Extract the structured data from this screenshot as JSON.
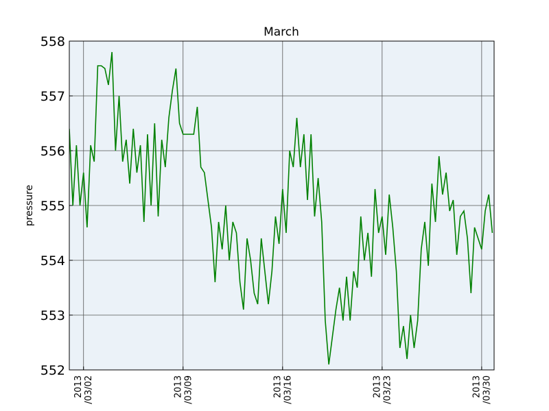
{
  "chart_data": {
    "type": "line",
    "title": "March",
    "ylabel": "pressure",
    "color": "#008000",
    "background": "#ebf2f8",
    "grid": true,
    "x": [
      "2013-03-01T00:00Z",
      "2013-03-01T06:00Z",
      "2013-03-01T12:00Z",
      "2013-03-01T18:00Z",
      "2013-03-02T00:00Z",
      "2013-03-02T06:00Z",
      "2013-03-02T12:00Z",
      "2013-03-02T18:00Z",
      "2013-03-03T00:00Z",
      "2013-03-03T06:00Z",
      "2013-03-03T12:00Z",
      "2013-03-03T18:00Z",
      "2013-03-04T00:00Z",
      "2013-03-04T06:00Z",
      "2013-03-04T12:00Z",
      "2013-03-04T18:00Z",
      "2013-03-05T00:00Z",
      "2013-03-05T06:00Z",
      "2013-03-05T12:00Z",
      "2013-03-05T18:00Z",
      "2013-03-06T00:00Z",
      "2013-03-06T06:00Z",
      "2013-03-06T12:00Z",
      "2013-03-06T18:00Z",
      "2013-03-07T00:00Z",
      "2013-03-07T06:00Z",
      "2013-03-07T12:00Z",
      "2013-03-07T18:00Z",
      "2013-03-08T00:00Z",
      "2013-03-08T06:00Z",
      "2013-03-08T12:00Z",
      "2013-03-08T18:00Z",
      "2013-03-09T00:00Z",
      "2013-03-09T06:00Z",
      "2013-03-09T12:00Z",
      "2013-03-09T18:00Z",
      "2013-03-10T00:00Z",
      "2013-03-10T06:00Z",
      "2013-03-10T12:00Z",
      "2013-03-10T18:00Z",
      "2013-03-11T00:00Z",
      "2013-03-11T06:00Z",
      "2013-03-11T12:00Z",
      "2013-03-11T18:00Z",
      "2013-03-12T00:00Z",
      "2013-03-12T06:00Z",
      "2013-03-12T12:00Z",
      "2013-03-12T18:00Z",
      "2013-03-13T00:00Z",
      "2013-03-13T06:00Z",
      "2013-03-13T12:00Z",
      "2013-03-13T18:00Z",
      "2013-03-14T00:00Z",
      "2013-03-14T06:00Z",
      "2013-03-14T12:00Z",
      "2013-03-14T18:00Z",
      "2013-03-15T00:00Z",
      "2013-03-15T06:00Z",
      "2013-03-15T12:00Z",
      "2013-03-15T18:00Z",
      "2013-03-16T00:00Z",
      "2013-03-16T06:00Z",
      "2013-03-16T12:00Z",
      "2013-03-16T18:00Z",
      "2013-03-17T00:00Z",
      "2013-03-17T06:00Z",
      "2013-03-17T12:00Z",
      "2013-03-17T18:00Z",
      "2013-03-18T00:00Z",
      "2013-03-18T06:00Z",
      "2013-03-18T12:00Z",
      "2013-03-18T18:00Z",
      "2013-03-19T00:00Z",
      "2013-03-19T06:00Z",
      "2013-03-19T12:00Z",
      "2013-03-19T18:00Z",
      "2013-03-20T00:00Z",
      "2013-03-20T06:00Z",
      "2013-03-20T12:00Z",
      "2013-03-20T18:00Z",
      "2013-03-21T00:00Z",
      "2013-03-21T06:00Z",
      "2013-03-21T12:00Z",
      "2013-03-21T18:00Z",
      "2013-03-22T00:00Z",
      "2013-03-22T06:00Z",
      "2013-03-22T12:00Z",
      "2013-03-22T18:00Z",
      "2013-03-23T00:00Z",
      "2013-03-23T06:00Z",
      "2013-03-23T12:00Z",
      "2013-03-23T18:00Z",
      "2013-03-24T00:00Z",
      "2013-03-24T06:00Z",
      "2013-03-24T12:00Z",
      "2013-03-24T18:00Z",
      "2013-03-25T00:00Z",
      "2013-03-25T06:00Z",
      "2013-03-25T12:00Z",
      "2013-03-25T18:00Z",
      "2013-03-26T00:00Z",
      "2013-03-26T06:00Z",
      "2013-03-26T12:00Z",
      "2013-03-26T18:00Z",
      "2013-03-27T00:00Z",
      "2013-03-27T06:00Z",
      "2013-03-27T12:00Z",
      "2013-03-27T18:00Z",
      "2013-03-28T00:00Z",
      "2013-03-28T06:00Z",
      "2013-03-28T12:00Z",
      "2013-03-28T18:00Z",
      "2013-03-29T00:00Z",
      "2013-03-29T06:00Z",
      "2013-03-29T12:00Z",
      "2013-03-29T18:00Z",
      "2013-03-30T00:00Z",
      "2013-03-30T06:00Z",
      "2013-03-30T12:00Z",
      "2013-03-30T18:00Z"
    ],
    "values": [
      556.4,
      555.0,
      556.1,
      555.0,
      555.6,
      554.6,
      556.1,
      555.8,
      557.55,
      557.55,
      557.5,
      557.2,
      557.8,
      556.0,
      557.0,
      555.8,
      556.2,
      555.4,
      556.4,
      555.6,
      556.1,
      554.7,
      556.3,
      555.0,
      556.5,
      554.8,
      556.2,
      555.7,
      556.6,
      557.1,
      557.5,
      556.5,
      556.3,
      556.3,
      556.3,
      556.3,
      556.8,
      555.7,
      555.6,
      555.1,
      554.6,
      553.6,
      554.7,
      554.2,
      555.0,
      554.0,
      554.7,
      554.5,
      553.6,
      553.1,
      554.4,
      554.0,
      553.4,
      553.2,
      554.4,
      553.8,
      553.2,
      553.8,
      554.8,
      554.3,
      555.3,
      554.5,
      556.0,
      555.7,
      556.6,
      555.7,
      556.3,
      555.1,
      556.3,
      554.8,
      555.5,
      554.7,
      552.9,
      552.1,
      552.6,
      553.1,
      553.5,
      552.9,
      553.7,
      552.9,
      553.8,
      553.5,
      554.8,
      554.0,
      554.5,
      553.7,
      555.3,
      554.5,
      554.8,
      554.1,
      555.2,
      554.6,
      553.8,
      552.4,
      552.8,
      552.2,
      553.0,
      552.4,
      552.9,
      554.2,
      554.7,
      553.9,
      555.4,
      554.7,
      555.9,
      555.2,
      555.6,
      554.9,
      555.1,
      554.1,
      554.8,
      554.9,
      554.4,
      553.4,
      554.6,
      554.4,
      554.2,
      554.9,
      555.2,
      554.5
    ],
    "xlim": [
      "2013-03-01T00:00Z",
      "2013-03-30T21:00Z"
    ],
    "xticks": [
      {
        "value": "2013-03-02T00:00Z",
        "label": "2013\n/03/02"
      },
      {
        "value": "2013-03-09T00:00Z",
        "label": "2013\n/03/09"
      },
      {
        "value": "2013-03-16T00:00Z",
        "label": "2013\n/03/16"
      },
      {
        "value": "2013-03-23T00:00Z",
        "label": "2013\n/03/23"
      },
      {
        "value": "2013-03-30T00:00Z",
        "label": "2013\n/03/30"
      }
    ],
    "ylim": [
      552,
      558
    ],
    "yticks": [
      552,
      553,
      554,
      555,
      556,
      557,
      558
    ]
  }
}
